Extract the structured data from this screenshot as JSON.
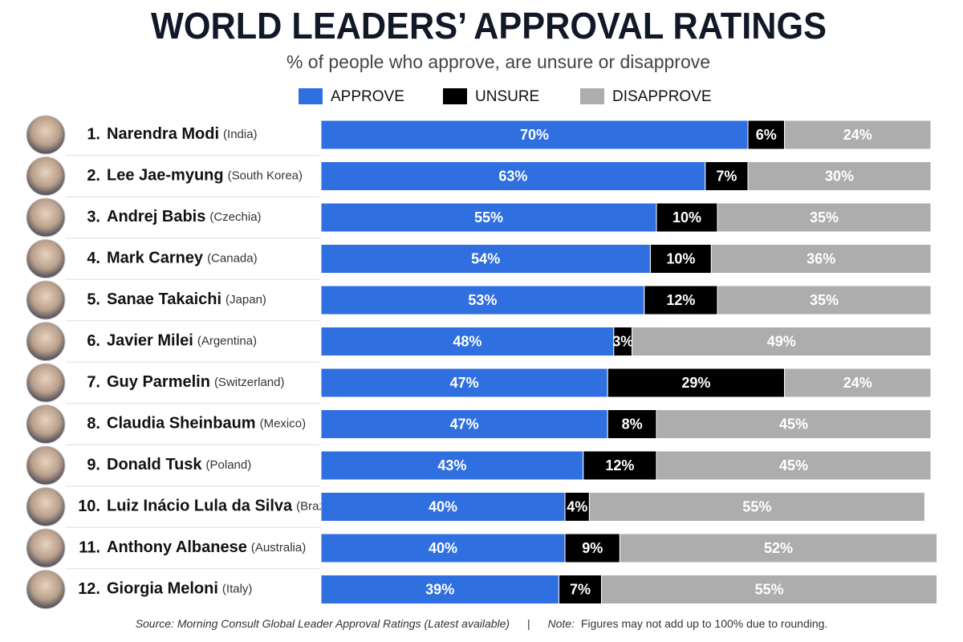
{
  "chart_data": {
    "type": "stacked-bar",
    "title": "WORLD LEADERS’ APPROVAL RATINGS",
    "subtitle": "% of people who approve, are unsure or disapprove",
    "ranks": [
      "1.",
      "2.",
      "3.",
      "4.",
      "5.",
      "6.",
      "7.",
      "8.",
      "9.",
      "10.",
      "11.",
      "12."
    ],
    "categories": [
      "Narendra Modi",
      "Lee Jae-myung",
      "Andrej Babis",
      "Mark Carney",
      "Sanae Takaichi",
      "Javier Milei",
      "Guy Parmelin",
      "Claudia Sheinbaum",
      "Donald Tusk",
      "Luiz Inácio Lula da Silva",
      "Anthony Albanese",
      "Giorgia Meloni"
    ],
    "countries": [
      "(India)",
      "(South Korea)",
      "(Czechia)",
      "(Canada)",
      "(Japan)",
      "(Argentina)",
      "(Switzerland)",
      "(Mexico)",
      "(Poland)",
      "(Brazil)",
      "(Australia)",
      "(Italy)"
    ],
    "series": [
      {
        "name": "APPROVE",
        "color": "#2f6fe0",
        "values": [
          70,
          63,
          55,
          54,
          53,
          48,
          47,
          47,
          43,
          40,
          40,
          39
        ],
        "value_labels": [
          "70%",
          "63%",
          "55%",
          "54%",
          "53%",
          "48%",
          "47%",
          "47%",
          "43%",
          "40%",
          "40%",
          "39%"
        ]
      },
      {
        "name": "UNSURE",
        "color": "#000000",
        "values": [
          6,
          7,
          10,
          10,
          12,
          3,
          29,
          8,
          12,
          4,
          9,
          7
        ],
        "value_labels": [
          "6%",
          "7%",
          "10%",
          "10%",
          "12%",
          "3%",
          "29%",
          "8%",
          "12%",
          "4%",
          "9%",
          "7%"
        ]
      },
      {
        "name": "DISAPPROVE",
        "color": "#adadad",
        "values": [
          24,
          30,
          35,
          36,
          35,
          49,
          24,
          45,
          45,
          55,
          52,
          55
        ],
        "value_labels": [
          "24%",
          "30%",
          "35%",
          "36%",
          "35%",
          "49%",
          "24%",
          "45%",
          "45%",
          "55%",
          "52%",
          "55%"
        ]
      }
    ],
    "source": "Source: Morning Consult Global Leader Approval Ratings (Latest available)",
    "separator": "|",
    "note_label": "Note:",
    "note": "Figures may not add up to 100% due to rounding."
  }
}
